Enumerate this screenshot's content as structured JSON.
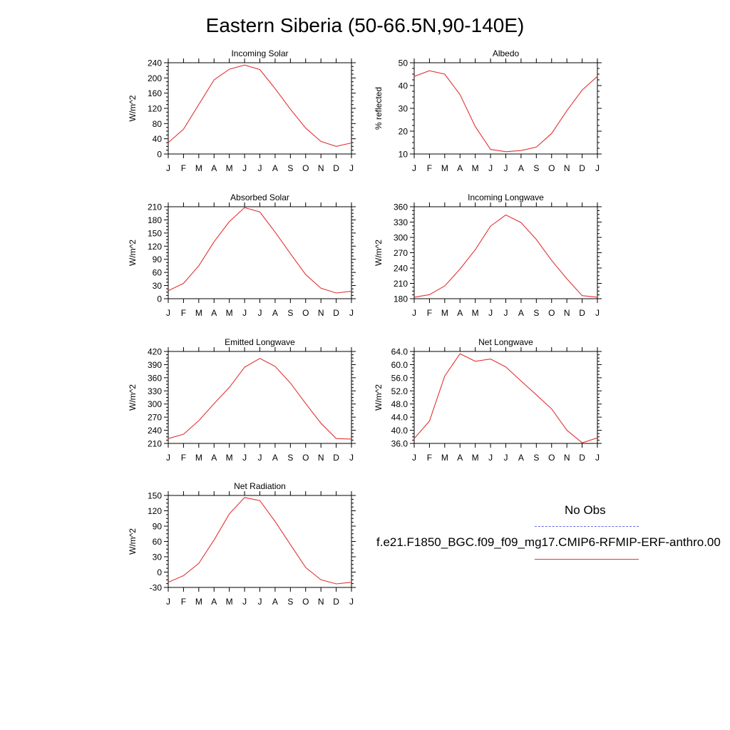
{
  "title": "Eastern Siberia (50-66.5N,90-140E)",
  "legend": {
    "obs_label": "No Obs",
    "obs_color": "#6a6ae8",
    "model_label": "f.e21.F1850_BGC.f09_f09_mg17.CMIP6-RFMIP-ERF-anthro.00",
    "model_color": "#e33333"
  },
  "chart_data": [
    {
      "type": "line",
      "title": "Incoming Solar",
      "ylabel": "W/m^2",
      "categories": [
        "J",
        "F",
        "M",
        "A",
        "M",
        "J",
        "J",
        "A",
        "S",
        "O",
        "N",
        "D",
        "J"
      ],
      "ylim": [
        0,
        240
      ],
      "yticks": [
        0,
        40,
        80,
        120,
        160,
        200,
        240
      ],
      "ytick_labels": [
        "0",
        "40",
        "80",
        "120",
        "160",
        "200",
        "240"
      ],
      "series": [
        {
          "values": [
            30,
            65,
            130,
            195,
            223,
            234,
            222,
            172,
            118,
            68,
            33,
            20,
            29
          ]
        }
      ]
    },
    {
      "type": "line",
      "title": "Albedo",
      "ylabel": "% reflected",
      "categories": [
        "J",
        "F",
        "M",
        "A",
        "M",
        "J",
        "J",
        "A",
        "S",
        "O",
        "N",
        "D",
        "J"
      ],
      "ylim": [
        10,
        50
      ],
      "yticks": [
        10,
        20,
        30,
        40,
        50
      ],
      "ytick_labels": [
        "10",
        "20",
        "30",
        "40",
        "50"
      ],
      "series": [
        {
          "values": [
            44,
            46.5,
            45,
            36,
            22,
            12,
            11,
            11.5,
            13,
            19,
            29,
            38,
            44
          ]
        }
      ]
    },
    {
      "type": "line",
      "title": "Absorbed Solar",
      "ylabel": "W/m^2",
      "categories": [
        "J",
        "F",
        "M",
        "A",
        "M",
        "J",
        "J",
        "A",
        "S",
        "O",
        "N",
        "D",
        "J"
      ],
      "ylim": [
        0,
        210
      ],
      "yticks": [
        0,
        30,
        60,
        90,
        120,
        150,
        180,
        210
      ],
      "ytick_labels": [
        "0",
        "30",
        "60",
        "90",
        "120",
        "150",
        "180",
        "210"
      ],
      "series": [
        {
          "values": [
            18,
            35,
            75,
            130,
            176,
            208,
            198,
            152,
            103,
            55,
            24,
            13,
            17
          ]
        }
      ]
    },
    {
      "type": "line",
      "title": "Incoming Longwave",
      "ylabel": "W/m^2",
      "categories": [
        "J",
        "F",
        "M",
        "A",
        "M",
        "J",
        "J",
        "A",
        "S",
        "O",
        "N",
        "D",
        "J"
      ],
      "ylim": [
        180,
        360
      ],
      "yticks": [
        180,
        210,
        240,
        270,
        300,
        330,
        360
      ],
      "ytick_labels": [
        "180",
        "210",
        "240",
        "270",
        "300",
        "330",
        "360"
      ],
      "series": [
        {
          "values": [
            183,
            188,
            205,
            238,
            276,
            322,
            344,
            329,
            296,
            255,
            219,
            186,
            183
          ]
        }
      ]
    },
    {
      "type": "line",
      "title": "Emitted Longwave",
      "ylabel": "W/m^2",
      "categories": [
        "J",
        "F",
        "M",
        "A",
        "M",
        "J",
        "J",
        "A",
        "S",
        "O",
        "N",
        "D",
        "J"
      ],
      "ylim": [
        210,
        420
      ],
      "yticks": [
        210,
        240,
        270,
        300,
        330,
        360,
        390,
        420
      ],
      "ytick_labels": [
        "210",
        "240",
        "270",
        "300",
        "330",
        "360",
        "390",
        "420"
      ],
      "series": [
        {
          "values": [
            221,
            231,
            262,
            301,
            338,
            384,
            404,
            386,
            348,
            301,
            256,
            221,
            220
          ]
        }
      ]
    },
    {
      "type": "line",
      "title": "Net Longwave",
      "ylabel": "W/m^2",
      "categories": [
        "J",
        "F",
        "M",
        "A",
        "M",
        "J",
        "J",
        "A",
        "S",
        "O",
        "N",
        "D",
        "J"
      ],
      "ylim": [
        36,
        64
      ],
      "yticks": [
        36,
        40,
        44,
        48,
        52,
        56,
        60,
        64
      ],
      "ytick_labels": [
        "36.0",
        "40.0",
        "44.0",
        "48.0",
        "52.0",
        "56.0",
        "60.0",
        "64.0"
      ],
      "series": [
        {
          "values": [
            37.5,
            42.8,
            56.5,
            63.3,
            61.0,
            61.7,
            59.3,
            55.0,
            50.8,
            46.5,
            40.0,
            36.2,
            37.7
          ]
        }
      ]
    },
    {
      "type": "line",
      "title": "Net Radiation",
      "ylabel": "W/m^2",
      "categories": [
        "J",
        "F",
        "M",
        "A",
        "M",
        "J",
        "J",
        "A",
        "S",
        "O",
        "N",
        "D",
        "J"
      ],
      "ylim": [
        -30,
        150
      ],
      "yticks": [
        -30,
        0,
        30,
        60,
        90,
        120,
        150
      ],
      "ytick_labels": [
        "-30",
        "0",
        "30",
        "60",
        "90",
        "120",
        "150"
      ],
      "series": [
        {
          "values": [
            -20,
            -7,
            17,
            63,
            114,
            146,
            140,
            99,
            54,
            9,
            -15,
            -23,
            -20
          ]
        }
      ]
    }
  ]
}
